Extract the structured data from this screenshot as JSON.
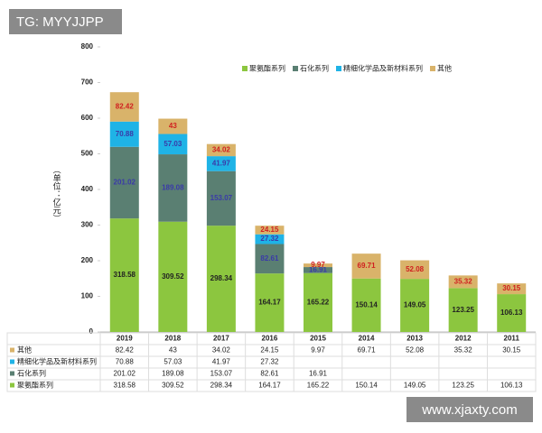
{
  "chart_data": {
    "type": "stacked_bar",
    "y_label": "（单位：亿元）",
    "categories": [
      "2019",
      "2018",
      "2017",
      "2016",
      "2015",
      "2014",
      "2013",
      "2012",
      "2011"
    ],
    "series": [
      {
        "name": "聚氨酯系列",
        "color": "#8cc63f",
        "label_color": "#222222",
        "values": [
          318.58,
          309.52,
          298.34,
          164.17,
          165.22,
          150.14,
          149.05,
          123.25,
          106.13
        ]
      },
      {
        "name": "石化系列",
        "color": "#5a7f72",
        "label_color": "#3a3aa8",
        "values": [
          201.02,
          189.08,
          153.07,
          82.61,
          16.91,
          null,
          null,
          null,
          null
        ]
      },
      {
        "name": "精细化学品及新材料系列",
        "color": "#1fb3e6",
        "label_color": "#3a3aa8",
        "values": [
          70.88,
          57.03,
          41.97,
          27.32,
          null,
          null,
          null,
          null,
          null
        ]
      },
      {
        "name": "其他",
        "color": "#d9b36a",
        "label_color": "#d02020",
        "values": [
          82.42,
          43,
          34.02,
          24.15,
          9.97,
          69.71,
          52.08,
          35.32,
          30.15
        ]
      }
    ],
    "ylim": [
      0,
      800
    ],
    "yticks": [
      0,
      100,
      200,
      300,
      400,
      500,
      600,
      700,
      800
    ],
    "legend": "top"
  },
  "watermarks": [
    "TG: MYYJJPP",
    "www.xjaxty.com"
  ]
}
